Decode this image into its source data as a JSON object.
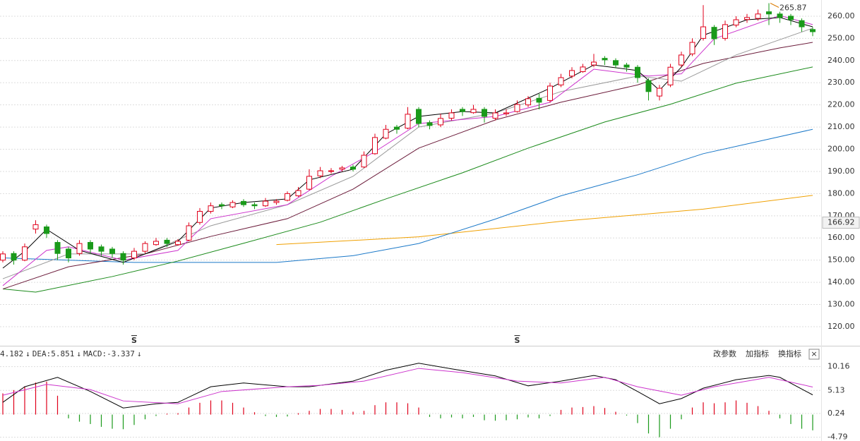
{
  "chart_data": [
    {
      "type": "candlestick",
      "up_color": "#e0001b",
      "down_color": "#1a9a1a",
      "ylim": [
        111.4,
        267.3
      ],
      "yticks": [
        {
          "value": 120,
          "label": "120.00"
        },
        {
          "value": 130,
          "label": "130.00"
        },
        {
          "value": 140,
          "label": "140.00"
        },
        {
          "value": 150,
          "label": "150.00"
        },
        {
          "value": 160,
          "label": "160.00"
        },
        {
          "value": 170,
          "label": "170.00"
        },
        {
          "value": 180,
          "label": "180.00"
        },
        {
          "value": 190,
          "label": "190.00"
        },
        {
          "value": 200,
          "label": "200.00"
        },
        {
          "value": 210,
          "label": "210.00"
        },
        {
          "value": 220,
          "label": "220.00"
        },
        {
          "value": 230,
          "label": "230.00"
        },
        {
          "value": 240,
          "label": "240.00"
        },
        {
          "value": 250,
          "label": "250.00"
        },
        {
          "value": 260,
          "label": "260.00"
        }
      ],
      "grid": true,
      "marker_price": 166.92,
      "max_index": 70,
      "ohlc": [
        [
          150,
          154,
          149,
          152.8
        ],
        [
          153,
          154,
          148,
          150
        ],
        [
          150,
          157.5,
          149.5,
          156
        ],
        [
          164,
          168,
          162,
          166
        ],
        [
          165,
          166,
          160,
          162
        ],
        [
          158,
          159,
          150,
          153
        ],
        [
          155,
          156,
          149,
          151
        ],
        [
          153,
          159,
          152,
          157.5
        ],
        [
          158,
          159,
          153,
          155
        ],
        [
          156,
          157,
          152,
          154
        ],
        [
          155,
          156,
          151,
          153
        ],
        [
          153,
          154,
          148,
          150
        ],
        [
          151,
          155.5,
          150,
          154
        ],
        [
          154,
          158.5,
          153,
          157.5
        ],
        [
          157,
          160,
          156.5,
          158.5
        ],
        [
          159,
          160,
          156,
          157.5
        ],
        [
          157,
          159.5,
          156.5,
          158.5
        ],
        [
          159,
          167,
          158.5,
          165.5
        ],
        [
          167,
          173.5,
          166,
          172
        ],
        [
          172,
          176,
          171,
          174.5
        ],
        [
          175,
          176,
          173,
          174.5
        ],
        [
          174,
          177,
          173.5,
          176
        ],
        [
          176.5,
          177.5,
          174,
          175
        ],
        [
          175,
          176,
          173,
          174.5
        ],
        [
          174.5,
          178,
          174,
          176.6
        ],
        [
          176,
          177.5,
          175,
          176.6
        ],
        [
          177,
          181,
          176.5,
          180
        ],
        [
          179,
          183,
          178.5,
          181.4
        ],
        [
          182,
          191,
          181.5,
          187.8
        ],
        [
          188,
          192,
          187,
          190.3
        ],
        [
          190,
          191.5,
          189,
          190.3
        ],
        [
          191,
          192.5,
          190,
          191.6
        ],
        [
          192,
          193,
          190,
          191
        ],
        [
          192,
          199,
          191.5,
          197.3
        ],
        [
          198,
          207,
          197.5,
          205.3
        ],
        [
          205,
          211,
          204.5,
          209
        ],
        [
          210,
          211,
          207,
          209
        ],
        [
          209.5,
          219,
          209,
          215.8
        ],
        [
          218,
          219,
          210,
          211.6
        ],
        [
          212,
          213,
          209,
          210.7
        ],
        [
          211,
          216,
          210,
          213.9
        ],
        [
          214,
          218,
          213,
          216.4
        ],
        [
          218,
          219,
          215,
          217
        ],
        [
          216.5,
          220,
          216,
          218
        ],
        [
          218,
          219,
          212,
          214.8
        ],
        [
          214,
          218,
          213,
          216.4
        ],
        [
          216,
          218,
          215,
          216.4
        ],
        [
          217,
          222,
          216.5,
          220.2
        ],
        [
          220,
          224,
          219,
          222.8
        ],
        [
          223,
          225,
          218,
          221.2
        ],
        [
          222,
          230,
          221,
          228.5
        ],
        [
          229,
          234,
          228,
          232.3
        ],
        [
          233,
          237,
          232,
          235.5
        ],
        [
          235,
          238.5,
          234.5,
          237.1
        ],
        [
          238,
          243,
          237,
          239.3
        ],
        [
          241,
          242,
          238,
          240.3
        ],
        [
          240,
          241,
          236.5,
          238
        ],
        [
          238,
          239,
          235,
          237
        ],
        [
          237,
          238,
          230,
          232.3
        ],
        [
          231,
          232,
          222,
          226
        ],
        [
          224,
          229,
          222,
          227.5
        ],
        [
          229,
          238.5,
          228,
          237
        ],
        [
          238,
          244,
          237,
          242.5
        ],
        [
          243,
          250,
          242,
          248.2
        ],
        [
          250,
          265,
          249,
          255.2
        ],
        [
          255,
          256,
          247,
          249.8
        ],
        [
          250,
          258,
          249,
          256.2
        ],
        [
          256,
          260,
          255,
          258.4
        ],
        [
          258.5,
          261,
          257,
          259.4
        ],
        [
          259,
          263,
          258,
          261
        ],
        [
          262,
          265.87,
          256,
          261
        ],
        [
          261,
          262,
          257,
          259.4
        ],
        [
          260,
          261,
          256,
          258.4
        ],
        [
          258,
          259,
          253,
          255.2
        ],
        [
          254,
          255,
          251,
          253
        ]
      ],
      "lines": [
        {
          "color": "#f0a000",
          "x": [
            25,
            38,
            51,
            64,
            74
          ],
          "values": [
            157,
            160.5,
            167.5,
            173,
            179.2
          ]
        },
        {
          "color": "#1a78c8",
          "x": [
            0,
            12,
            25,
            32,
            38,
            45,
            51,
            58,
            64,
            74
          ],
          "values": [
            151,
            149,
            149,
            152,
            157.5,
            168.5,
            179,
            188.5,
            198,
            209
          ]
        },
        {
          "color": "#1a8a1a",
          "x": [
            0,
            3,
            10,
            16,
            22,
            29,
            35,
            42,
            48,
            55,
            61,
            67,
            74
          ],
          "values": [
            137,
            135.6,
            142.6,
            149.6,
            157.6,
            167.1,
            177.6,
            189.4,
            200.5,
            212.3,
            220.3,
            229.8,
            237.1
          ]
        },
        {
          "color": "#6b1b3a",
          "x": [
            0,
            6,
            13,
            19,
            26,
            32,
            38,
            45,
            51,
            58,
            64,
            71,
            74
          ],
          "values": [
            137,
            147,
            152.8,
            160.7,
            168.7,
            182,
            200.5,
            213.2,
            221.2,
            229,
            238.7,
            245.7,
            248.2
          ]
        },
        {
          "color": "#999999",
          "x": [
            0,
            6,
            13,
            19,
            26,
            32,
            38,
            45,
            51,
            58,
            62,
            67,
            74
          ],
          "values": [
            141.6,
            152.8,
            152.8,
            165.5,
            175,
            187.8,
            210,
            216.4,
            226,
            233,
            230.7,
            242.5,
            254.6
          ]
        },
        {
          "color": "#cc33cc",
          "x": [
            0,
            4,
            6,
            11,
            16,
            19,
            26,
            30,
            34,
            38,
            45,
            50,
            54,
            59,
            62,
            65,
            71,
            74
          ],
          "values": [
            138.5,
            154.4,
            156,
            150,
            154.4,
            168.7,
            175,
            187.8,
            198.9,
            211.6,
            214.8,
            221.2,
            236.1,
            233,
            234,
            249.8,
            260.3,
            256.2
          ]
        },
        {
          "color": "#000000",
          "x": [
            0,
            2,
            4,
            7,
            11,
            16,
            19,
            22,
            26,
            28,
            32,
            35,
            38,
            42,
            45,
            50,
            54,
            58,
            60,
            62,
            64,
            68,
            71,
            74
          ],
          "values": [
            146.4,
            154,
            163.9,
            154.4,
            149,
            158.5,
            173.5,
            176,
            177.6,
            186.2,
            191,
            206.9,
            214.8,
            217,
            216.4,
            227.5,
            238,
            235.5,
            226.6,
            237,
            251.4,
            258.4,
            259.4,
            255.2
          ]
        }
      ],
      "signals": [
        {
          "x": 12,
          "label": "S"
        },
        {
          "x": 47,
          "label": "S"
        }
      ]
    },
    {
      "type": "macd",
      "up_color": "#e0001b",
      "down_color": "#1a9a1a",
      "ylim": [
        -5.6,
        14.3
      ],
      "yticks": [
        -4.79,
        0.24,
        5.13,
        10.16
      ],
      "grid": true,
      "dea_label": "DEA:",
      "macd_label": "MACD:",
      "arrow": "↓",
      "histogram": [
        4.5,
        5.2,
        6,
        6.8,
        7,
        4,
        -0.8,
        -1.5,
        -2,
        -2.6,
        -3,
        -3.1,
        -2.2,
        -1,
        -0.3,
        0.2,
        0.3,
        1.5,
        2.5,
        3,
        3,
        2.5,
        1.5,
        0.5,
        -0.3,
        -0.5,
        -0.4,
        0.3,
        0.8,
        1.2,
        1.2,
        1,
        0.6,
        0.8,
        2,
        2.6,
        2.6,
        2.4,
        1.5,
        -0.5,
        -0.8,
        -0.6,
        -0.8,
        -0.5,
        -1.2,
        -1.3,
        -1.2,
        -1,
        -0.6,
        -0.8,
        -0.3,
        1,
        1.5,
        1.6,
        1.8,
        1.4,
        0.6,
        -0.2,
        -1.8,
        -4,
        -4.8,
        -3,
        -1,
        1.5,
        2.6,
        2.4,
        2.6,
        3,
        2.5,
        1.8,
        0.8,
        -0.8,
        -2,
        -3,
        -3.337
      ],
      "dif": {
        "color": "#000000",
        "x": [
          0,
          2,
          5,
          8,
          11,
          14,
          16,
          19,
          22,
          26,
          28,
          32,
          35,
          38,
          41,
          45,
          48,
          51,
          54,
          56,
          58,
          60,
          62,
          64,
          67,
          70,
          71,
          74
        ],
        "values": [
          2.6,
          5.9,
          7.9,
          4.9,
          1.4,
          2.3,
          2.6,
          5.9,
          6.7,
          5.9,
          5.9,
          7.1,
          9.4,
          10.9,
          9.7,
          8.2,
          6.1,
          7.1,
          8.3,
          7.4,
          4.9,
          2.3,
          3.4,
          5.6,
          7.4,
          8.3,
          7.9,
          4.182
        ]
      },
      "dea": {
        "color": "#cc33cc",
        "x": [
          0,
          4,
          8,
          11,
          16,
          20,
          26,
          29,
          33,
          38,
          42,
          47,
          51,
          55,
          58,
          62,
          65,
          70,
          74
        ],
        "values": [
          4.1,
          6.4,
          5.3,
          2.9,
          2.3,
          4.9,
          5.9,
          6.2,
          7.1,
          9.8,
          8.9,
          7.1,
          6.7,
          7.9,
          5.9,
          4.1,
          5.9,
          7.9,
          5.851
        ]
      }
    }
  ],
  "toolbar": {
    "buttons": [
      "改参数",
      "加指标",
      "换指标"
    ],
    "close": "×"
  }
}
